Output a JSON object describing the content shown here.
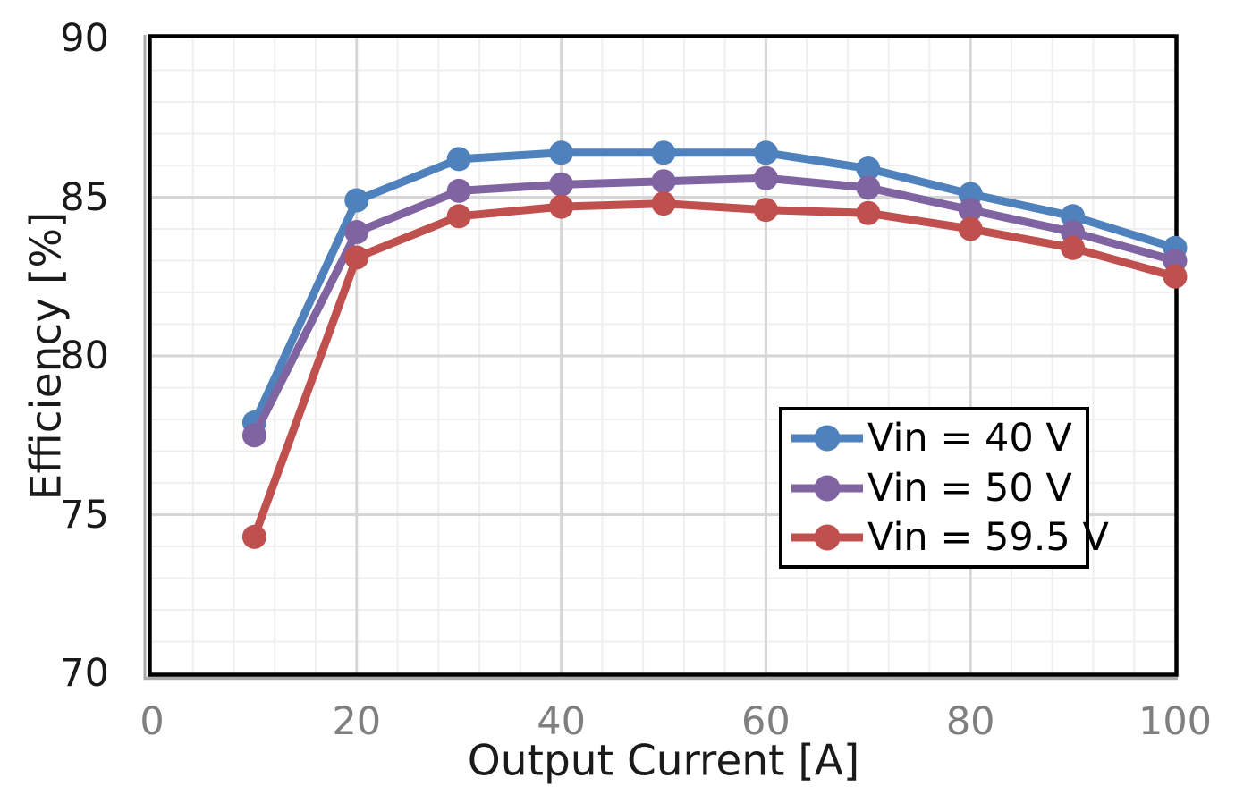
{
  "chart_data": {
    "type": "line",
    "title": "",
    "xlabel": "Output Current [A]",
    "ylabel": "Efficiency [%]",
    "x": [
      10,
      20,
      30,
      40,
      50,
      60,
      70,
      80,
      90,
      100
    ],
    "series": [
      {
        "name": "Vin = 40 V",
        "color": "#4F81BD",
        "values": [
          77.9,
          84.9,
          86.2,
          86.4,
          86.4,
          86.4,
          85.9,
          85.1,
          84.4,
          83.4
        ]
      },
      {
        "name": "Vin = 50 V",
        "color": "#8064A2",
        "values": [
          77.5,
          83.9,
          85.2,
          85.4,
          85.5,
          85.6,
          85.3,
          84.6,
          83.9,
          83.0
        ]
      },
      {
        "name": "Vin = 59.5 V",
        "color": "#C0504D",
        "values": [
          74.3,
          83.1,
          84.4,
          84.7,
          84.8,
          84.6,
          84.5,
          84.0,
          83.4,
          82.5
        ]
      }
    ],
    "xlim": [
      0,
      100
    ],
    "ylim": [
      70,
      90
    ],
    "x_ticks": [
      0,
      20,
      40,
      60,
      80,
      100
    ],
    "y_ticks": [
      90,
      85,
      80,
      75,
      70
    ],
    "x_major_step": 20,
    "y_major_step": 5,
    "x_minor_step": 4,
    "y_minor_step": 1,
    "grid": "on",
    "legend_position": "inside-right",
    "colors": {
      "grid_minor": "#efefef",
      "grid_major": "#d6d6d6",
      "plot_border": "#000000",
      "axis_shadow": "#ababab",
      "x_tick_text": "#7f7f7f",
      "y_tick_text": "#1a1a1a",
      "legend_text": "#000000"
    }
  }
}
